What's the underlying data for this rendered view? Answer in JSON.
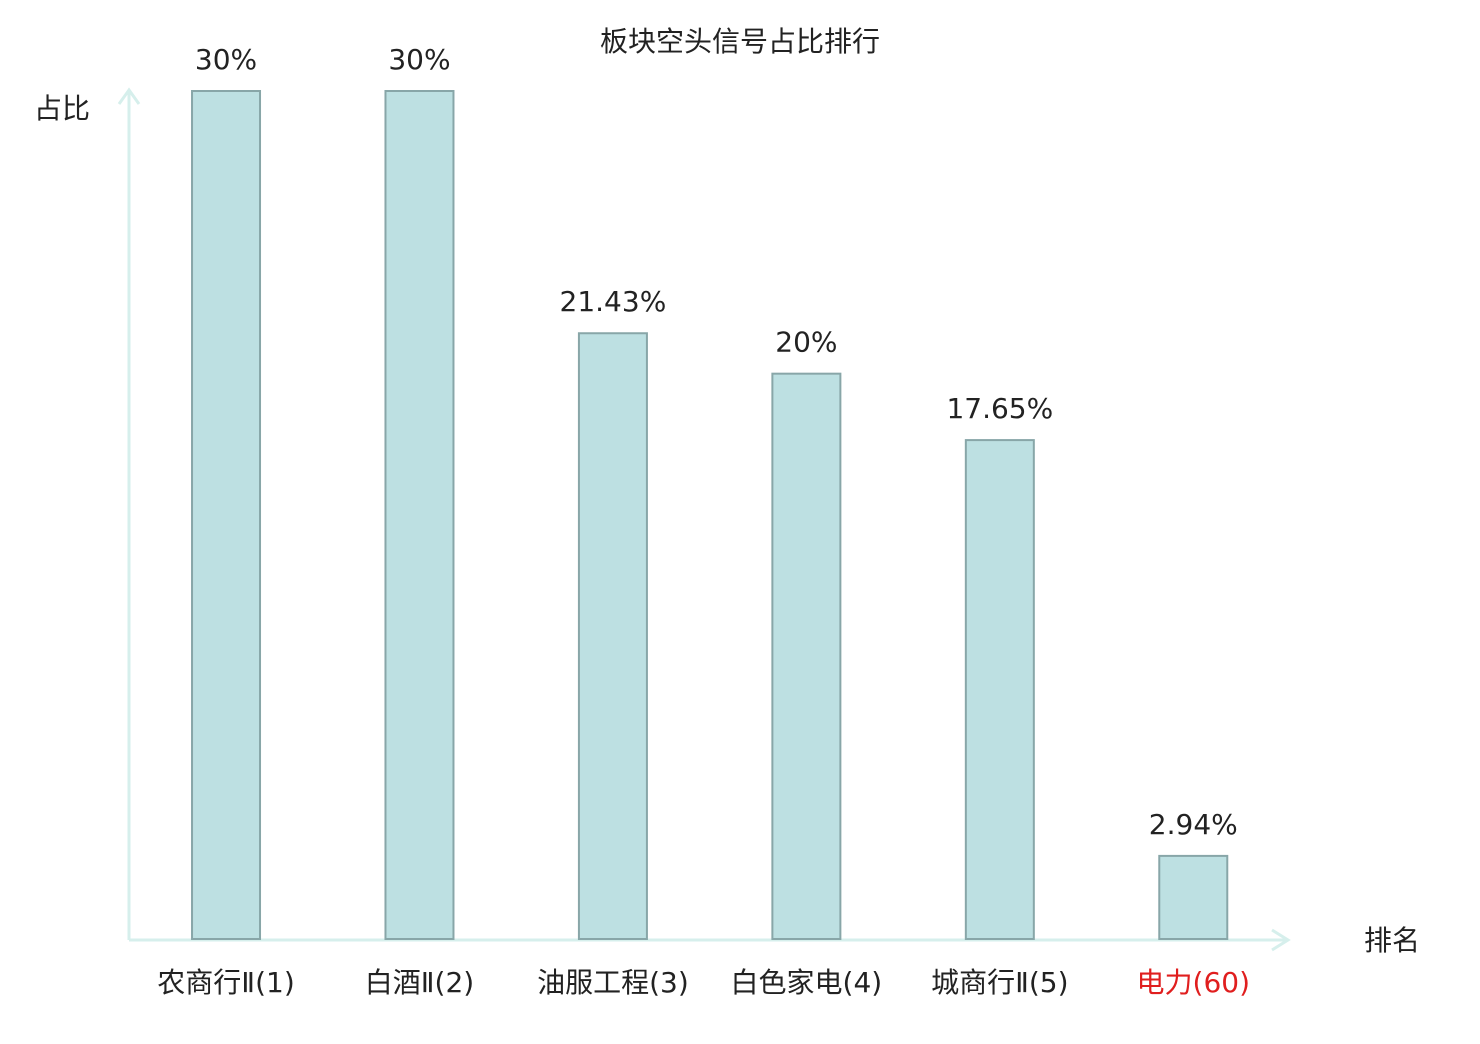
{
  "chart_data": {
    "type": "bar",
    "title": "板块空头信号占比排行",
    "y_label": "占比",
    "x_label": "排名",
    "categories": [
      "农商行Ⅱ(1)",
      "白酒Ⅱ(2)",
      "油服工程(3)",
      "白色家电(4)",
      "城商行Ⅱ(5)",
      "电力(60)"
    ],
    "category_label_colors": [
      "#222222",
      "#222222",
      "#222222",
      "#222222",
      "#222222",
      "#e01e1e"
    ],
    "values": [
      30,
      30,
      21.43,
      20,
      17.65,
      2.94
    ],
    "value_labels": [
      "30%",
      "30%",
      "21.43%",
      "20%",
      "17.65%",
      "2.94%"
    ],
    "color": "#bde0e2",
    "edge_color": "#88a6a8",
    "ylim": [
      0,
      30
    ]
  }
}
